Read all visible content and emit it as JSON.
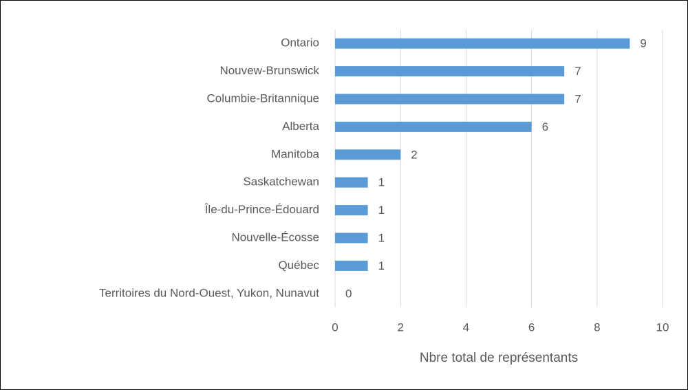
{
  "chart_data": {
    "type": "bar",
    "orientation": "horizontal",
    "x_label": "Nbre total de représentants",
    "categories": [
      "Ontario",
      "Nouvew-Brunswick",
      "Columbie-Britannique",
      "Alberta",
      "Manitoba",
      "Saskatchewan",
      "Île-du-Prince-Édouard",
      "Nouvelle-Écosse",
      "Québec",
      "Territoires du Nord-Ouest, Yukon, Nunavut"
    ],
    "values": [
      9,
      7,
      7,
      6,
      2,
      1,
      1,
      1,
      1,
      0
    ],
    "color": "#5b9bd5",
    "xlim": [
      0,
      10
    ],
    "xticks": [
      0,
      2,
      4,
      6,
      8,
      10
    ],
    "grid": true
  }
}
